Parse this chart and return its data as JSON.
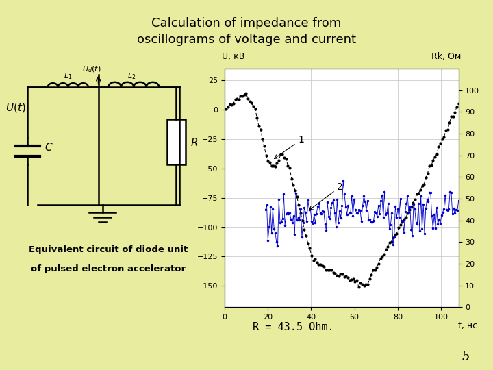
{
  "title": "Calculation of impedance from\noscillograms of voltage and current",
  "title_fontsize": 14,
  "bg_color": "#e8ec9e",
  "circuit_bg": "#ffffff",
  "eq_text_line1": "Equivalent circuit of diode unit",
  "eq_text_line2": "of pulsed electron accelerator",
  "r_formula_prefix": "R = 43.",
  "r_formula_suffix": "5 Ohm.",
  "page_number": "5",
  "plot_ylabel_left": "U, кВ",
  "plot_ylabel_right": "Rk, Ом",
  "plot_xlabel": "t, нс",
  "y_left_ticks": [
    25,
    0,
    -25,
    -50,
    -75,
    -100,
    -125,
    -150
  ],
  "y_right_ticks": [
    100,
    90,
    80,
    70,
    60,
    50,
    40,
    30,
    20,
    10,
    0
  ],
  "x_ticks": [
    0,
    20,
    40,
    60,
    80,
    100
  ],
  "xlim": [
    0,
    108
  ],
  "ylim_left": [
    -168,
    35
  ],
  "ylim_right": [
    0,
    110
  ],
  "black_color": "#000000",
  "blue_color": "#0000cc",
  "grid_color": "#cccccc"
}
